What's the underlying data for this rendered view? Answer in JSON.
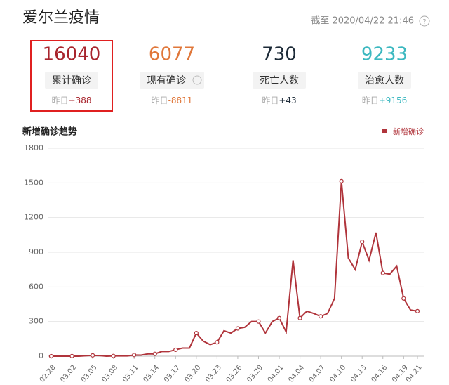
{
  "header": {
    "title": "爱尔兰疫情",
    "timestamp": "截至 2020/04/22 21:46"
  },
  "stats": [
    {
      "value": 16040,
      "label": "累计确诊",
      "delta_label": "昨日",
      "delta": "+388",
      "color": "#a8252d"
    },
    {
      "value": 6077,
      "label": "现有确诊",
      "delta_label": "昨日",
      "delta": "-8811",
      "color": "#e0773a"
    },
    {
      "value": 730,
      "label": "死亡人数",
      "delta_label": "昨日",
      "delta": "+43",
      "color": "#1d2b38"
    },
    {
      "value": 9233,
      "label": "治愈人数",
      "delta_label": "昨日",
      "delta": "+9156",
      "color": "#3cb8c0"
    }
  ],
  "chart_data": {
    "type": "line",
    "title": "新增确诊趋势",
    "categories": [
      "02.28",
      null,
      null,
      "03.02",
      null,
      null,
      "03.05",
      null,
      null,
      "03.08",
      null,
      null,
      "03.11",
      null,
      null,
      "03.14",
      null,
      null,
      "03.17",
      null,
      null,
      "03.20",
      null,
      null,
      "03.23",
      null,
      null,
      "03.26",
      null,
      null,
      "03.29",
      null,
      null,
      "04.01",
      null,
      null,
      "04.04",
      null,
      null,
      "04.07",
      null,
      null,
      "04.10",
      null,
      null,
      "04.13",
      null,
      null,
      "04.16",
      null,
      null,
      "04.19",
      null,
      "04.21"
    ],
    "series": [
      {
        "name": "新增确诊",
        "color": "#b0343b",
        "values": [
          0,
          0,
          0,
          1,
          0,
          4,
          7,
          5,
          0,
          2,
          2,
          2,
          10,
          9,
          20,
          20,
          40,
          40,
          55,
          70,
          70,
          200,
          130,
          100,
          120,
          220,
          200,
          240,
          250,
          300,
          300,
          200,
          300,
          330,
          210,
          830,
          330,
          390,
          370,
          345,
          370,
          500,
          1515,
          850,
          750,
          990,
          830,
          1070,
          720,
          710,
          780,
          500,
          400,
          390
        ]
      }
    ],
    "ylim": [
      0,
      1800
    ],
    "yticks": [
      0,
      300,
      600,
      900,
      1200,
      1500,
      1800
    ],
    "grid": true,
    "legend": "top-right"
  }
}
